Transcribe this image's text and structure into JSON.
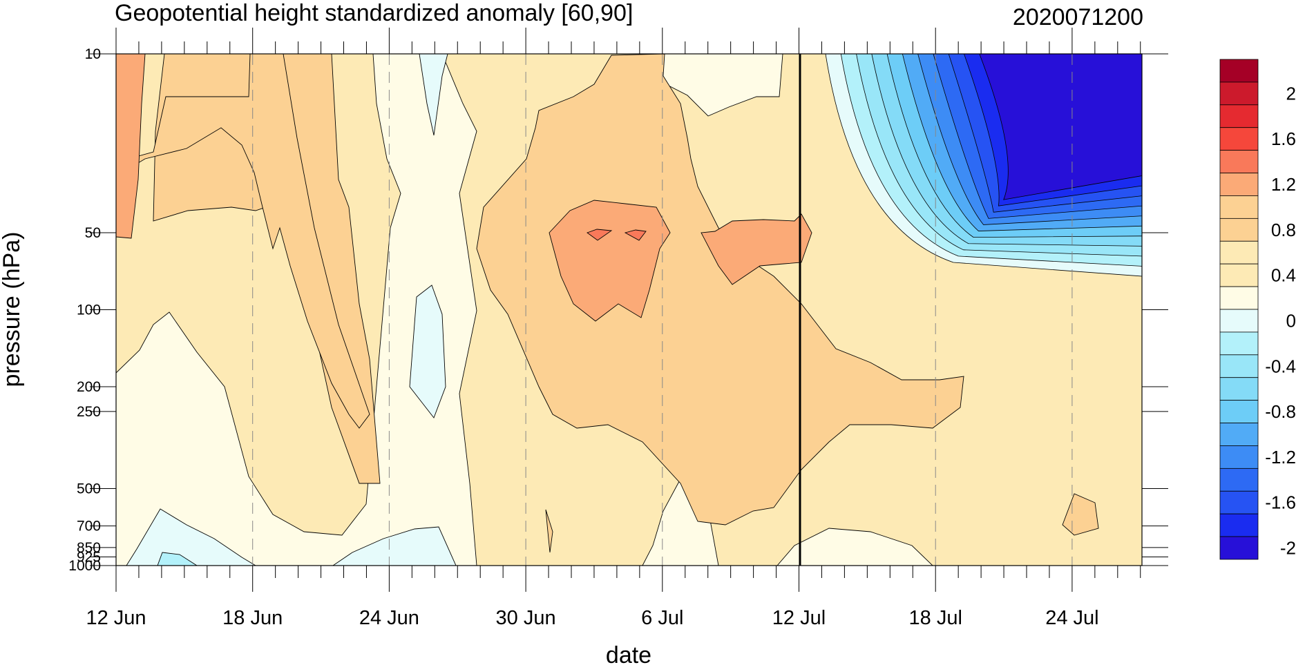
{
  "chart_data": {
    "type": "heatmap",
    "subtype": "filled-contour",
    "title": "Geopotential height standardized anomaly [60,90]",
    "title_right": "2020071200",
    "xlabel": "date",
    "ylabel": "pressure (hPa)",
    "x_ticks": [
      "12 Jun",
      "18 Jun",
      "24 Jun",
      "30 Jun",
      "6 Jul",
      "12 Jul",
      "18 Jul",
      "24 Jul"
    ],
    "x_range": [
      "2020-06-12",
      "2020-07-27"
    ],
    "y_ticks": [
      10,
      50,
      100,
      200,
      250,
      500,
      700,
      850,
      925,
      1000
    ],
    "y_range": [
      1000,
      10
    ],
    "y_scale": "log",
    "reference_line": "2020-07-12",
    "vertical_dashed_gridlines": [
      "18 Jun",
      "24 Jun",
      "30 Jun",
      "6 Jul",
      "18 Jul",
      "24 Jul"
    ],
    "colorbar": {
      "labels": [
        "2",
        "1.6",
        "1.2",
        "0.8",
        "0.4",
        "0",
        "-0.4",
        "-0.8",
        "-1.2",
        "-1.6",
        "-2"
      ],
      "levels": [
        2.2,
        2.0,
        1.8,
        1.6,
        1.4,
        1.2,
        1.0,
        0.8,
        0.6,
        0.4,
        0.2,
        0.0,
        -0.2,
        -0.4,
        -0.6,
        -0.8,
        -1.0,
        -1.2,
        -1.4,
        -1.6,
        -1.8,
        -2.0,
        -2.2
      ],
      "colors": [
        "#a50026",
        "#cc1a2c",
        "#e52a30",
        "#f5473b",
        "#f9795a",
        "#fbaa77",
        "#fcd193",
        "#fcd193",
        "#fdeab5",
        "#fdeab5",
        "#fffce6",
        "#e6fbfb",
        "#b3f1fa",
        "#99e6f8",
        "#84dbf7",
        "#6dcdf7",
        "#51abf6",
        "#3d8cf5",
        "#2d6af4",
        "#2653f3",
        "#1a2cf0",
        "#2710d8"
      ]
    },
    "regions": [
      {
        "name": "tan-0.6-main",
        "value": 0.6,
        "color": "#fcd193"
      },
      {
        "name": "orange-1.0-jun12",
        "value": 1.0,
        "color": "#fbaa77"
      },
      {
        "name": "orange-1.0-jul3",
        "value": 1.0,
        "color": "#fbaa77"
      },
      {
        "name": "orange-1.0-jul9",
        "value": 1.0,
        "color": "#fbaa77"
      },
      {
        "name": "red-1.2-cells",
        "value": 1.2,
        "color": "#f9795a"
      },
      {
        "name": "lightblue-negative-pockets",
        "value": -0.1,
        "color": "#e6fbfb"
      },
      {
        "name": "blue-strat-anomaly",
        "min": -2.2,
        "max": 0.0
      }
    ]
  }
}
